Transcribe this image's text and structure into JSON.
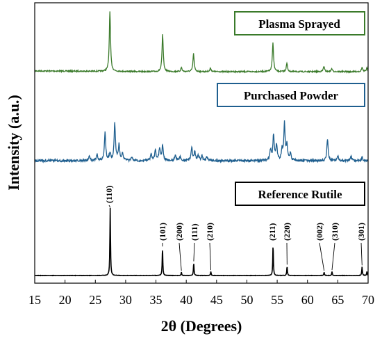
{
  "chart_data": {
    "type": "line",
    "xlabel": "2θ (Degrees)",
    "ylabel": "Intensity (a.u.)",
    "xlim": [
      15,
      70
    ],
    "xticks": [
      15,
      20,
      25,
      30,
      35,
      40,
      45,
      50,
      55,
      60,
      65,
      70
    ],
    "grid": false,
    "series": [
      {
        "name": "Plasma Sprayed",
        "color": "#3a7a2a",
        "peaks": [
          [
            27.4,
            1.0
          ],
          [
            36.1,
            0.62
          ],
          [
            39.2,
            0.07
          ],
          [
            41.2,
            0.3
          ],
          [
            44.0,
            0.06
          ],
          [
            54.3,
            0.48
          ],
          [
            56.6,
            0.14
          ],
          [
            62.7,
            0.09
          ],
          [
            64.0,
            0.05
          ],
          [
            69.0,
            0.07
          ],
          [
            69.8,
            0.06
          ]
        ]
      },
      {
        "name": "Purchased Powder",
        "color": "#1f5f8f",
        "peaks": [
          [
            24.0,
            0.1
          ],
          [
            25.3,
            0.12
          ],
          [
            26.6,
            0.55
          ],
          [
            27.4,
            0.15
          ],
          [
            28.2,
            0.73
          ],
          [
            28.9,
            0.3
          ],
          [
            29.5,
            0.15
          ],
          [
            31.0,
            0.06
          ],
          [
            34.2,
            0.12
          ],
          [
            34.9,
            0.2
          ],
          [
            35.6,
            0.25
          ],
          [
            36.1,
            0.3
          ],
          [
            38.2,
            0.1
          ],
          [
            39.0,
            0.08
          ],
          [
            40.9,
            0.25
          ],
          [
            41.4,
            0.17
          ],
          [
            42.0,
            0.1
          ],
          [
            42.6,
            0.1
          ],
          [
            43.4,
            0.07
          ],
          [
            53.9,
            0.21
          ],
          [
            54.4,
            0.5
          ],
          [
            54.9,
            0.3
          ],
          [
            55.8,
            0.2
          ],
          [
            56.2,
            0.71
          ],
          [
            56.6,
            0.28
          ],
          [
            57.2,
            0.14
          ],
          [
            63.3,
            0.42
          ],
          [
            65.0,
            0.1
          ],
          [
            67.2,
            0.08
          ],
          [
            69.0,
            0.06
          ]
        ]
      },
      {
        "name": "Reference Rutile",
        "color": "#000000",
        "peaks": [
          [
            27.45,
            1.0
          ],
          [
            36.08,
            0.41
          ],
          [
            39.2,
            0.05
          ],
          [
            41.23,
            0.19
          ],
          [
            44.05,
            0.06
          ],
          [
            54.32,
            0.46
          ],
          [
            56.63,
            0.14
          ],
          [
            62.74,
            0.05
          ],
          [
            64.04,
            0.06
          ],
          [
            69.0,
            0.13
          ],
          [
            69.8,
            0.06
          ]
        ]
      }
    ],
    "peak_labels": [
      {
        "x": 27.45,
        "text": "(110)"
      },
      {
        "x": 36.08,
        "text": "(101)"
      },
      {
        "x": 39.2,
        "text": "(200)"
      },
      {
        "x": 41.23,
        "text": "(111)"
      },
      {
        "x": 44.05,
        "text": "(210)"
      },
      {
        "x": 54.32,
        "text": "(211)"
      },
      {
        "x": 56.63,
        "text": "(220)"
      },
      {
        "x": 62.74,
        "text": "(002)"
      },
      {
        "x": 64.04,
        "text": "(310)"
      },
      {
        "x": 69.0,
        "text": "(301)"
      }
    ]
  }
}
